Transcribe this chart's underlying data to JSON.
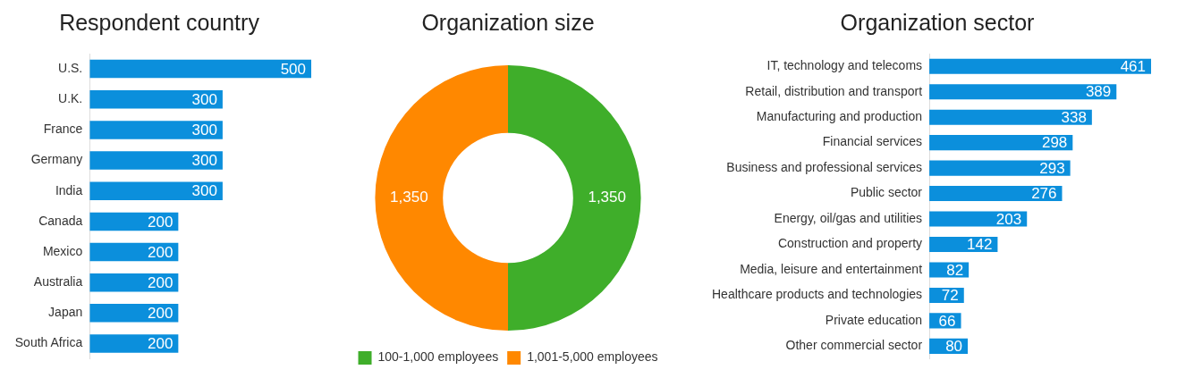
{
  "chart_data": [
    {
      "type": "bar",
      "orientation": "horizontal",
      "title": "Respondent country",
      "categories": [
        "U.S.",
        "U.K.",
        "France",
        "Germany",
        "India",
        "Canada",
        "Mexico",
        "Australia",
        "Japan",
        "South Africa"
      ],
      "values": [
        500,
        300,
        300,
        300,
        300,
        200,
        200,
        200,
        200,
        200
      ],
      "color": "#0b8fdc",
      "data_labels": true,
      "grid": false,
      "legend": false,
      "tick_labels": "y"
    },
    {
      "type": "donut",
      "title": "Organization size",
      "categories": [
        "100-1,000 employees",
        "1,001-5,000 employees"
      ],
      "values": [
        1350,
        1350
      ],
      "value_labels": [
        "1,350",
        "1,350"
      ],
      "colors": [
        "#3fae2a",
        "#ff8800"
      ],
      "legend": "bottom"
    },
    {
      "type": "bar",
      "orientation": "horizontal",
      "title": "Organization sector",
      "categories": [
        "IT, technology and telecoms",
        "Retail, distribution and transport",
        "Manufacturing and production",
        "Financial services",
        "Business and professional services",
        "Public sector",
        "Energy, oil/gas and utilities",
        "Construction and property",
        "Media, leisure and entertainment",
        "Healthcare products and technologies",
        "Private education",
        "Other commercial sector"
      ],
      "values": [
        461,
        389,
        338,
        298,
        293,
        276,
        203,
        142,
        82,
        72,
        66,
        80
      ],
      "color": "#0b8fdc",
      "data_labels": true,
      "grid": false,
      "legend": false,
      "tick_labels": "y"
    }
  ]
}
